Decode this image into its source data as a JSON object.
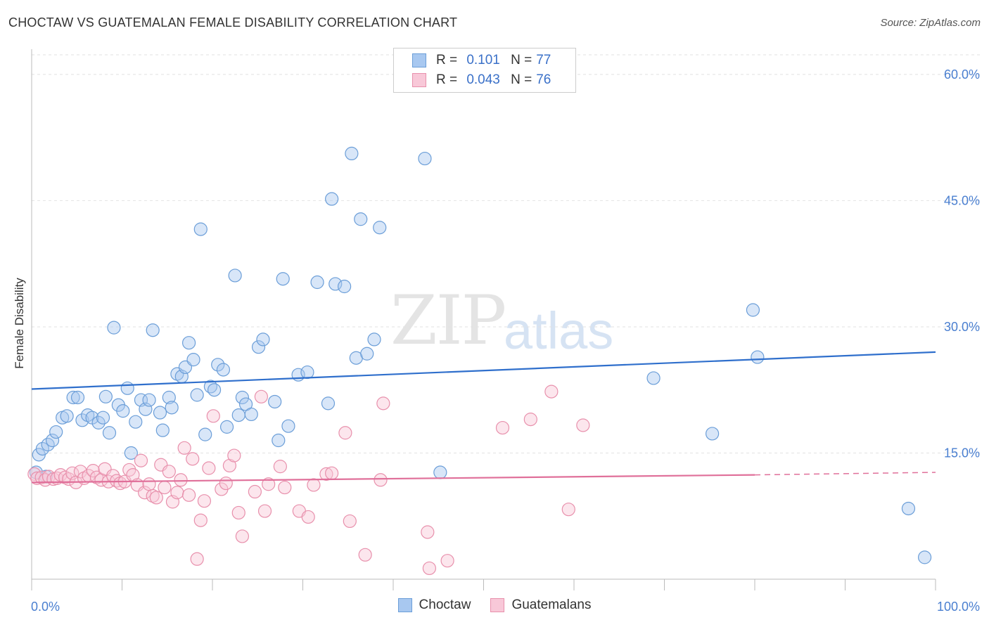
{
  "title": "CHOCTAW VS GUATEMALAN FEMALE DISABILITY CORRELATION CHART",
  "source": "Source: ZipAtlas.com",
  "watermark": {
    "part1": "ZIP",
    "part2": "atlas"
  },
  "legend": {
    "rows": [
      {
        "r_label": "R =",
        "r_value": "0.101",
        "n_label": "N =",
        "n_value": "77",
        "color": "#a8c8f0",
        "border": "#6b9ed8"
      },
      {
        "r_label": "R =",
        "r_value": "0.043",
        "n_label": "N =",
        "n_value": "76",
        "color": "#f8c8d8",
        "border": "#e890ac"
      }
    ]
  },
  "bottom_legend": [
    "Choctaw",
    "Guatemalans"
  ],
  "chart_data": {
    "type": "scatter",
    "title": "CHOCTAW VS GUATEMALAN FEMALE DISABILITY CORRELATION CHART",
    "xlabel": "",
    "ylabel": "Female Disability",
    "xlim": [
      0,
      100
    ],
    "ylim": [
      0,
      63
    ],
    "x_tick_labels": [
      "0.0%",
      "100.0%"
    ],
    "y_ticks": [
      15,
      30,
      45,
      60
    ],
    "y_tick_labels": [
      "15.0%",
      "30.0%",
      "45.0%",
      "60.0%"
    ],
    "grid": true,
    "legend_position": "top-center",
    "series": [
      {
        "name": "Choctaw",
        "color": "#6b9ed8",
        "fill": "#a8c8f0",
        "trend": {
          "x": [
            0,
            100
          ],
          "y": [
            22.6,
            27.0
          ],
          "color": "#2f6fcc"
        },
        "points": [
          [
            0.8,
            14.8
          ],
          [
            1.2,
            15.5
          ],
          [
            1.8,
            16.0
          ],
          [
            2.3,
            16.5
          ],
          [
            2.7,
            17.5
          ],
          [
            3.4,
            19.2
          ],
          [
            3.9,
            19.4
          ],
          [
            4.6,
            21.6
          ],
          [
            5.1,
            21.6
          ],
          [
            5.6,
            18.9
          ],
          [
            6.2,
            19.5
          ],
          [
            6.7,
            19.2
          ],
          [
            7.4,
            18.6
          ],
          [
            7.9,
            19.2
          ],
          [
            8.2,
            21.7
          ],
          [
            8.6,
            17.4
          ],
          [
            9.1,
            29.9
          ],
          [
            9.6,
            20.7
          ],
          [
            10.1,
            20.0
          ],
          [
            10.6,
            22.7
          ],
          [
            11.0,
            15.0
          ],
          [
            11.5,
            18.7
          ],
          [
            12.1,
            21.3
          ],
          [
            12.6,
            20.2
          ],
          [
            13.0,
            21.3
          ],
          [
            13.4,
            29.6
          ],
          [
            14.2,
            19.8
          ],
          [
            14.5,
            17.7
          ],
          [
            15.2,
            21.6
          ],
          [
            15.5,
            20.4
          ],
          [
            16.1,
            24.4
          ],
          [
            16.6,
            24.1
          ],
          [
            17.0,
            25.2
          ],
          [
            17.4,
            28.1
          ],
          [
            17.9,
            26.1
          ],
          [
            18.3,
            21.9
          ],
          [
            18.7,
            41.6
          ],
          [
            19.2,
            17.2
          ],
          [
            19.8,
            22.9
          ],
          [
            20.2,
            22.5
          ],
          [
            20.6,
            25.5
          ],
          [
            21.2,
            24.9
          ],
          [
            21.6,
            18.1
          ],
          [
            22.5,
            36.1
          ],
          [
            22.9,
            19.5
          ],
          [
            23.3,
            21.6
          ],
          [
            23.7,
            20.8
          ],
          [
            24.3,
            19.6
          ],
          [
            25.1,
            27.6
          ],
          [
            25.6,
            28.5
          ],
          [
            26.9,
            21.1
          ],
          [
            27.3,
            16.5
          ],
          [
            27.8,
            35.7
          ],
          [
            28.4,
            18.2
          ],
          [
            29.5,
            24.3
          ],
          [
            30.5,
            24.6
          ],
          [
            31.6,
            35.3
          ],
          [
            32.8,
            20.9
          ],
          [
            33.2,
            45.2
          ],
          [
            33.6,
            35.1
          ],
          [
            34.6,
            34.8
          ],
          [
            35.4,
            50.6
          ],
          [
            35.9,
            26.3
          ],
          [
            36.4,
            42.8
          ],
          [
            37.1,
            26.8
          ],
          [
            37.9,
            28.5
          ],
          [
            38.5,
            41.8
          ],
          [
            43.5,
            50.0
          ],
          [
            45.2,
            12.7
          ],
          [
            68.8,
            23.9
          ],
          [
            75.3,
            17.3
          ],
          [
            79.8,
            32.0
          ],
          [
            80.3,
            26.4
          ],
          [
            97.0,
            8.4
          ],
          [
            98.8,
            2.6
          ],
          [
            0.5,
            12.7
          ],
          [
            1.6,
            12.2
          ]
        ]
      },
      {
        "name": "Guatemalans",
        "color": "#e890ac",
        "fill": "#f8c8d8",
        "trend": {
          "x": [
            0,
            80
          ],
          "y": [
            11.5,
            12.4
          ],
          "color": "#e0709a",
          "dashed_to": [
            100,
            12.7
          ]
        },
        "points": [
          [
            0.3,
            12.5
          ],
          [
            0.6,
            12.0
          ],
          [
            1.1,
            12.1
          ],
          [
            1.5,
            11.8
          ],
          [
            1.9,
            12.2
          ],
          [
            2.4,
            11.9
          ],
          [
            2.8,
            12.0
          ],
          [
            3.2,
            12.4
          ],
          [
            3.7,
            12.1
          ],
          [
            4.1,
            11.9
          ],
          [
            4.5,
            12.6
          ],
          [
            4.9,
            11.5
          ],
          [
            5.4,
            12.8
          ],
          [
            5.8,
            12.0
          ],
          [
            6.3,
            12.3
          ],
          [
            6.8,
            12.9
          ],
          [
            7.2,
            12.1
          ],
          [
            7.7,
            11.8
          ],
          [
            8.1,
            13.1
          ],
          [
            8.5,
            11.6
          ],
          [
            9.0,
            12.3
          ],
          [
            9.4,
            11.7
          ],
          [
            9.8,
            11.4
          ],
          [
            10.3,
            11.6
          ],
          [
            10.8,
            13.0
          ],
          [
            11.2,
            12.4
          ],
          [
            11.7,
            11.2
          ],
          [
            12.1,
            14.1
          ],
          [
            12.5,
            10.3
          ],
          [
            13.0,
            11.3
          ],
          [
            13.4,
            9.9
          ],
          [
            13.8,
            9.7
          ],
          [
            14.3,
            13.6
          ],
          [
            14.7,
            10.9
          ],
          [
            15.2,
            12.8
          ],
          [
            15.6,
            9.2
          ],
          [
            16.1,
            10.3
          ],
          [
            16.5,
            11.8
          ],
          [
            16.9,
            15.6
          ],
          [
            17.4,
            10.0
          ],
          [
            17.8,
            14.3
          ],
          [
            18.3,
            2.4
          ],
          [
            18.7,
            7.0
          ],
          [
            19.1,
            9.3
          ],
          [
            19.6,
            13.2
          ],
          [
            20.1,
            19.4
          ],
          [
            21.0,
            10.7
          ],
          [
            21.5,
            11.4
          ],
          [
            21.9,
            13.5
          ],
          [
            22.4,
            14.7
          ],
          [
            22.9,
            7.9
          ],
          [
            23.3,
            5.1
          ],
          [
            24.7,
            10.4
          ],
          [
            25.4,
            21.7
          ],
          [
            25.8,
            8.1
          ],
          [
            26.2,
            11.3
          ],
          [
            27.5,
            13.4
          ],
          [
            28.0,
            10.9
          ],
          [
            29.6,
            8.1
          ],
          [
            30.6,
            7.4
          ],
          [
            31.2,
            11.2
          ],
          [
            32.6,
            12.5
          ],
          [
            33.2,
            12.6
          ],
          [
            34.7,
            17.4
          ],
          [
            35.2,
            6.9
          ],
          [
            36.9,
            2.9
          ],
          [
            38.6,
            11.8
          ],
          [
            38.9,
            20.9
          ],
          [
            43.8,
            5.6
          ],
          [
            44.0,
            1.3
          ],
          [
            46.0,
            2.2
          ],
          [
            52.1,
            18.0
          ],
          [
            55.2,
            19.0
          ],
          [
            57.5,
            22.3
          ],
          [
            59.4,
            8.3
          ],
          [
            61.0,
            18.3
          ]
        ]
      }
    ]
  }
}
